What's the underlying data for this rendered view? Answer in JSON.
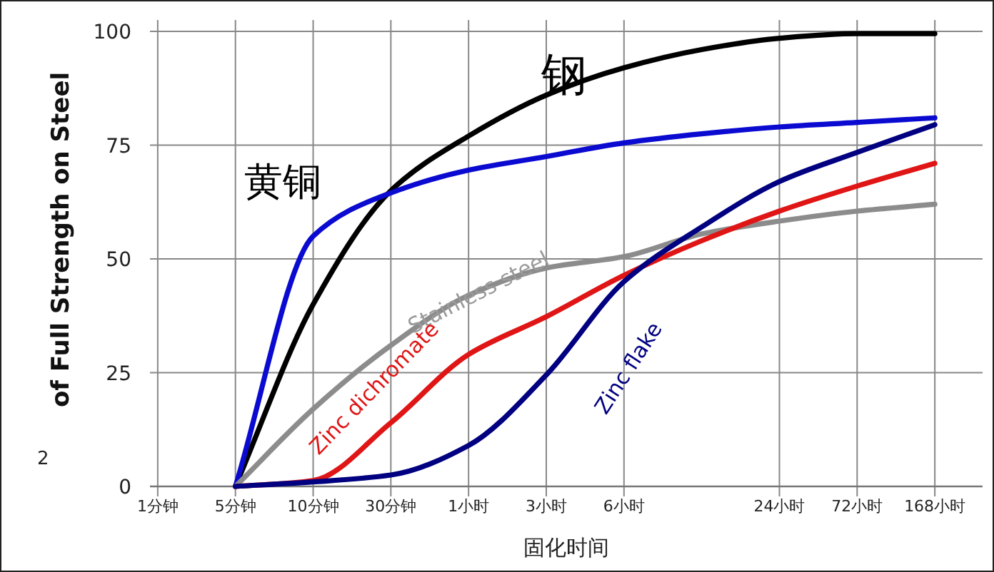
{
  "chart_data": {
    "type": "line",
    "xlabel": "固化时间",
    "ylabel": "of Full Strength on Steel",
    "categories": [
      "1分钟",
      "5分钟",
      "10分钟",
      "30分钟",
      "1小时",
      "3小时",
      "6小时",
      null,
      "24小时",
      "72小时",
      "168小时"
    ],
    "ylim": [
      0,
      100
    ],
    "yticks": [
      0,
      25,
      50,
      75,
      100
    ],
    "grid": true,
    "line_style": "solid",
    "series": [
      {
        "color": "#000000",
        "values": [
          null,
          0,
          40,
          65,
          77,
          86,
          92,
          96,
          98.5,
          99.5,
          99.5
        ]
      },
      {
        "color": "#0a0ad0",
        "values": [
          null,
          0,
          55,
          64.5,
          69.5,
          72.5,
          75.5,
          77.5,
          79,
          80,
          81
        ]
      },
      {
        "color": "#8c8c8c",
        "values": [
          null,
          0,
          17,
          31,
          42,
          48,
          50.5,
          55.5,
          58.3,
          60.5,
          62
        ]
      },
      {
        "color": "#e01515",
        "values": [
          null,
          0,
          1.3,
          14,
          29,
          37.3,
          46.4,
          54,
          60.5,
          66,
          71
        ]
      },
      {
        "color": "#000080",
        "values": [
          null,
          0,
          1,
          2.5,
          9,
          24.5,
          45,
          57,
          67,
          73.4,
          79.5
        ]
      }
    ],
    "annotations": [
      "钢",
      "黄铜",
      "Stainless steel",
      "Zinc dichromate",
      "Zinc flake",
      "2"
    ]
  }
}
